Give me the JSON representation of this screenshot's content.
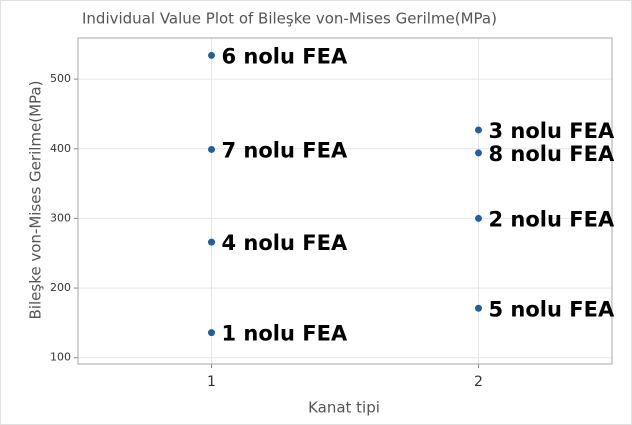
{
  "chart_data": {
    "type": "scatter",
    "title": "Individual Value Plot of Bileşke von-Mises Gerilme(MPa)",
    "xlabel": "Kanat tipi",
    "ylabel": "Bileşke von-Mises Gerilme(MPa)",
    "x": [
      1,
      1,
      1,
      1,
      2,
      2,
      2,
      2
    ],
    "values": [
      534,
      399,
      266,
      136,
      427,
      394,
      300,
      171
    ],
    "point_labels": [
      "6 nolu FEA",
      "7 nolu FEA",
      "4 nolu FEA",
      "1 nolu FEA",
      "3 nolu FEA",
      "8 nolu FEA",
      "2 nolu FEA",
      "5 nolu FEA"
    ],
    "color": "#1f5fa8",
    "xlim": [
      0.5,
      2.5
    ],
    "xticks": [
      1,
      2
    ],
    "ylim": [
      91,
      559
    ],
    "yticks": [
      100,
      200,
      300,
      400,
      500
    ],
    "grid": true
  }
}
